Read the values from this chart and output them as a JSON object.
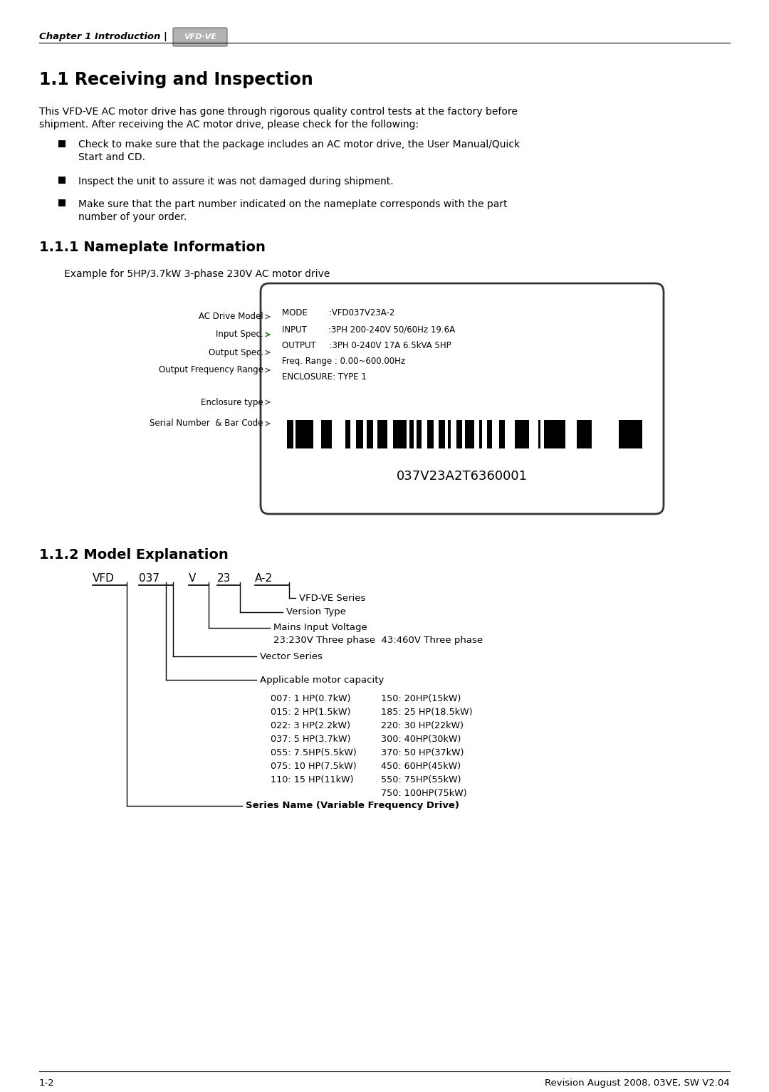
{
  "page_bg": "#ffffff",
  "header_text": "Chapter 1 Introduction |",
  "header_logo": "VFD·VE",
  "section_title": "1.1 Receiving and Inspection",
  "intro_line1": "This VFD-VE AC motor drive has gone through rigorous quality control tests at the factory before",
  "intro_line2": "shipment. After receiving the AC motor drive, please check for the following:",
  "bullet1_line1": "Check to make sure that the package includes an AC motor drive, the User Manual/Quick",
  "bullet1_line2": "Start and CD.",
  "bullet2": "Inspect the unit to assure it was not damaged during shipment.",
  "bullet3_line1": "Make sure that the part number indicated on the nameplate corresponds with the part",
  "bullet3_line2": "number of your order.",
  "sub_section1": "1.1.1 Nameplate Information",
  "nameplate_example": "Example for 5HP/3.7kW 3-phase 230V AC motor drive",
  "nameplate_labels": [
    "AC Drive Model",
    "Input Spec.",
    "Output Spec.",
    "Output Frequency Range",
    "Enclosure type",
    "Serial Number  & Bar Code"
  ],
  "np_line1": "MODE        :VFD037V23A-2",
  "np_line2": "INPUT        :3PH 200-240V 50/60Hz 19.6A",
  "np_line3": "OUTPUT     :3PH 0-240V 17A 6.5kVA 5HP",
  "np_line4": "Freq. Range : 0.00~600.00Hz",
  "np_line5": "ENCLOSURE: TYPE 1",
  "np_serial": "037V23A2T6360001",
  "sub_section2": "1.1.2 Model Explanation",
  "model_parts": [
    "VFD",
    "037",
    "V",
    "23",
    "A-2"
  ],
  "label_ve": "VFD-VE Series",
  "label_ver": "Version Type",
  "label_mains": "Mains Input Voltage",
  "label_mains2": "23:230V Three phase  43:460V Three phase",
  "label_vector": "Vector Series",
  "label_applicable": "Applicable motor capacity",
  "cap_left": [
    "007: 1 HP(0.7kW)",
    "015: 2 HP(1.5kW)",
    "022: 3 HP(2.2kW)",
    "037: 5 HP(3.7kW)",
    "055: 7.5HP(5.5kW)",
    "075: 10 HP(7.5kW)",
    "110: 15 HP(11kW)"
  ],
  "cap_right": [
    "150: 20HP(15kW)",
    "185: 25 HP(18.5kW)",
    "220: 30 HP(22kW)",
    "300: 40HP(30kW)",
    "370: 50 HP(37kW)",
    "450: 60HP(45kW)",
    "550: 75HP(55kW)",
    "750: 100HP(75kW)"
  ],
  "label_series": "Series Name (Variable Frequency Drive)",
  "footer_left": "1-2",
  "footer_right": "Revision August 2008, 03VE, SW V2.04"
}
